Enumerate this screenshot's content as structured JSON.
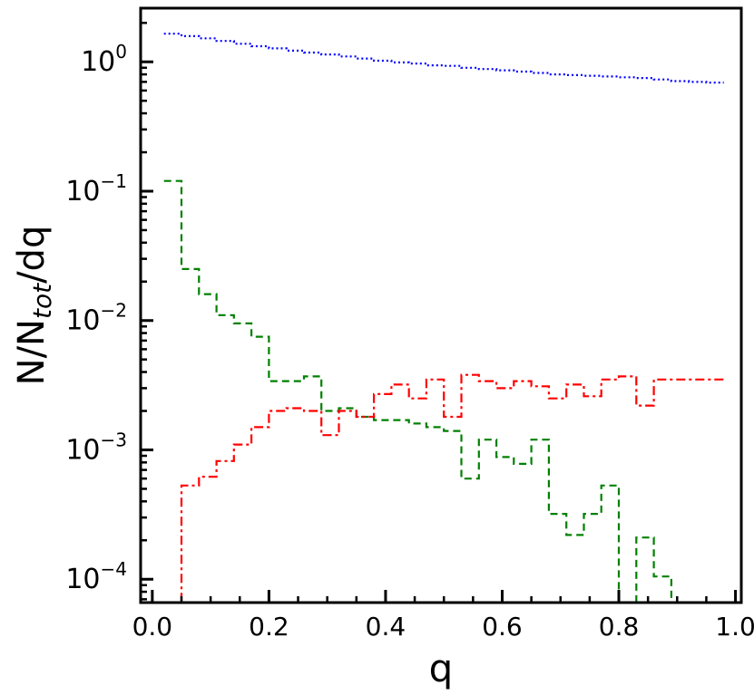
{
  "chart_data": {
    "type": "line",
    "style": "step histogram",
    "xlabel": "q",
    "ylabel_main": "N/N",
    "ylabel_sub": "tot",
    "ylabel_tail": "/dq",
    "xlim": [
      -0.02,
      1.01
    ],
    "ylim": [
      6.6e-05,
      2.6
    ],
    "yscale": "log",
    "grid": false,
    "legend": "none",
    "x_ticks": [
      "0.0",
      "0.2",
      "0.4",
      "0.6",
      "0.8",
      "1.0"
    ],
    "y_ticks": [
      {
        "base": "10",
        "exp": "0"
      },
      {
        "base": "10",
        "exp": "−1"
      },
      {
        "base": "10",
        "exp": "−2"
      },
      {
        "base": "10",
        "exp": "−3"
      },
      {
        "base": "10",
        "exp": "−4"
      }
    ],
    "bin_edges": [
      0.02,
      0.05,
      0.08,
      0.11,
      0.14,
      0.17,
      0.2,
      0.23,
      0.26,
      0.29,
      0.32,
      0.35,
      0.38,
      0.41,
      0.44,
      0.47,
      0.5,
      0.53,
      0.56,
      0.59,
      0.62,
      0.65,
      0.68,
      0.71,
      0.74,
      0.77,
      0.8,
      0.83,
      0.86,
      0.89,
      0.92,
      0.95,
      0.98
    ],
    "series": [
      {
        "color": "#0000ff",
        "dash": "dotted",
        "values": [
          1.65,
          1.58,
          1.52,
          1.45,
          1.38,
          1.32,
          1.27,
          1.22,
          1.18,
          1.14,
          1.1,
          1.06,
          1.02,
          0.99,
          0.97,
          0.94,
          0.93,
          0.9,
          0.88,
          0.86,
          0.84,
          0.82,
          0.8,
          0.79,
          0.78,
          0.77,
          0.76,
          0.75,
          0.73,
          0.71,
          0.7,
          0.69
        ]
      },
      {
        "color": "#008000",
        "dash": "dashed",
        "values": [
          0.12,
          0.025,
          0.016,
          0.011,
          0.0095,
          0.0075,
          0.0034,
          0.0034,
          0.0037,
          0.002,
          0.0021,
          0.0018,
          0.0017,
          0.0017,
          0.0016,
          0.0015,
          0.0014,
          0.0006,
          0.0012,
          0.00088,
          0.00078,
          0.0012,
          0.00032,
          0.00022,
          0.00032,
          0.00053,
          4e-05,
          0.00021,
          0.000105,
          5e-05,
          4e-05,
          4e-05
        ]
      },
      {
        "color": "#ff0000",
        "dash": "dashdot",
        "values": [
          3e-05,
          0.00053,
          0.00062,
          0.00082,
          0.0011,
          0.0015,
          0.002,
          0.0021,
          0.002,
          0.0013,
          0.002,
          0.0018,
          0.0027,
          0.0032,
          0.0025,
          0.0035,
          0.0018,
          0.0038,
          0.0034,
          0.003,
          0.0034,
          0.0031,
          0.0025,
          0.0032,
          0.0026,
          0.0035,
          0.0037,
          0.0022,
          0.0035,
          0.0035,
          0.0035,
          0.0035
        ]
      }
    ]
  }
}
